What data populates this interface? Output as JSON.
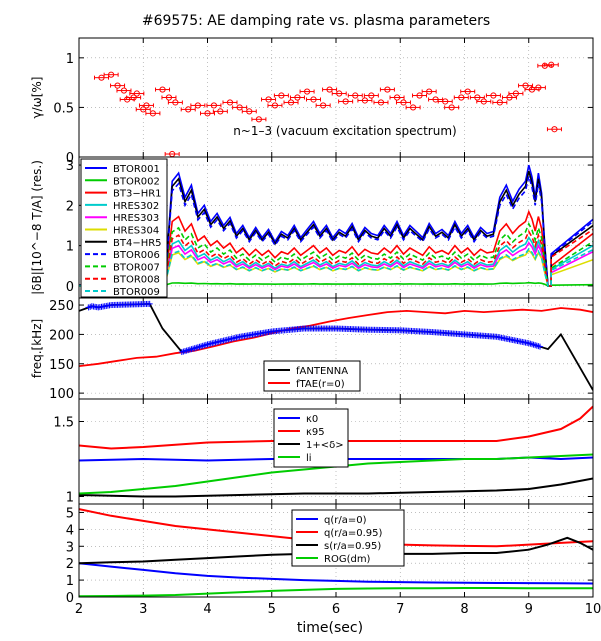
{
  "title": "#69575: AE damping rate vs. plasma parameters",
  "xlabel": "time(sec)",
  "x_ticks": [
    2,
    3,
    4,
    5,
    6,
    7,
    8,
    9,
    10
  ],
  "xlim": [
    2,
    10
  ],
  "chart_data": [
    {
      "type": "scatter",
      "ylabel": "γ/ω[%]",
      "ylim": [
        0,
        1.2
      ],
      "y_ticks": [
        0,
        0.5,
        1
      ],
      "annotation": "n~1–3 (vacuum excitation spectrum)",
      "color": "#ff0000",
      "series": [
        {
          "points": [
            {
              "x": 2.35,
              "y": 0.8
            },
            {
              "x": 2.5,
              "y": 0.83
            },
            {
              "x": 2.6,
              "y": 0.72
            },
            {
              "x": 2.7,
              "y": 0.67
            },
            {
              "x": 2.75,
              "y": 0.58
            },
            {
              "x": 2.85,
              "y": 0.6
            },
            {
              "x": 2.9,
              "y": 0.64
            },
            {
              "x": 3.0,
              "y": 0.48
            },
            {
              "x": 3.05,
              "y": 0.52
            },
            {
              "x": 3.15,
              "y": 0.44
            },
            {
              "x": 3.3,
              "y": 0.68
            },
            {
              "x": 3.4,
              "y": 0.6
            },
            {
              "x": 3.5,
              "y": 0.55
            },
            {
              "x": 3.45,
              "y": 0.03
            },
            {
              "x": 3.7,
              "y": 0.48
            },
            {
              "x": 3.85,
              "y": 0.52
            },
            {
              "x": 4.0,
              "y": 0.44
            },
            {
              "x": 4.1,
              "y": 0.52
            },
            {
              "x": 4.2,
              "y": 0.46
            },
            {
              "x": 4.35,
              "y": 0.55
            },
            {
              "x": 4.5,
              "y": 0.5
            },
            {
              "x": 4.65,
              "y": 0.46
            },
            {
              "x": 4.8,
              "y": 0.38
            },
            {
              "x": 4.95,
              "y": 0.58
            },
            {
              "x": 5.05,
              "y": 0.52
            },
            {
              "x": 5.15,
              "y": 0.62
            },
            {
              "x": 5.3,
              "y": 0.55
            },
            {
              "x": 5.4,
              "y": 0.6
            },
            {
              "x": 5.55,
              "y": 0.66
            },
            {
              "x": 5.65,
              "y": 0.58
            },
            {
              "x": 5.8,
              "y": 0.52
            },
            {
              "x": 5.9,
              "y": 0.68
            },
            {
              "x": 6.05,
              "y": 0.64
            },
            {
              "x": 6.15,
              "y": 0.56
            },
            {
              "x": 6.3,
              "y": 0.62
            },
            {
              "x": 6.45,
              "y": 0.57
            },
            {
              "x": 6.55,
              "y": 0.62
            },
            {
              "x": 6.7,
              "y": 0.55
            },
            {
              "x": 6.8,
              "y": 0.68
            },
            {
              "x": 6.95,
              "y": 0.6
            },
            {
              "x": 7.05,
              "y": 0.55
            },
            {
              "x": 7.2,
              "y": 0.5
            },
            {
              "x": 7.3,
              "y": 0.62
            },
            {
              "x": 7.45,
              "y": 0.66
            },
            {
              "x": 7.55,
              "y": 0.58
            },
            {
              "x": 7.7,
              "y": 0.56
            },
            {
              "x": 7.8,
              "y": 0.5
            },
            {
              "x": 7.95,
              "y": 0.6
            },
            {
              "x": 8.05,
              "y": 0.66
            },
            {
              "x": 8.2,
              "y": 0.6
            },
            {
              "x": 8.3,
              "y": 0.56
            },
            {
              "x": 8.45,
              "y": 0.62
            },
            {
              "x": 8.55,
              "y": 0.55
            },
            {
              "x": 8.7,
              "y": 0.6
            },
            {
              "x": 8.8,
              "y": 0.64
            },
            {
              "x": 8.95,
              "y": 0.72
            },
            {
              "x": 9.05,
              "y": 0.68
            },
            {
              "x": 9.15,
              "y": 0.7
            },
            {
              "x": 9.25,
              "y": 0.92
            },
            {
              "x": 9.35,
              "y": 0.93
            },
            {
              "x": 9.4,
              "y": 0.28
            }
          ]
        }
      ]
    },
    {
      "type": "line",
      "ylabel": "|δB|[10^−8 T/A] (res.)",
      "ylim": [
        -0.3,
        3.2
      ],
      "y_ticks": [
        0,
        1,
        2,
        3
      ],
      "legend": "top-left",
      "series": [
        {
          "name": "BTOR001",
          "color": "#0000ff",
          "dash": "",
          "scale": 1.0,
          "extra": [
            1.45,
            1.65
          ]
        },
        {
          "name": "BTOR002",
          "color": "#00cc00",
          "dash": "",
          "scale": 0.02,
          "extra": [
            0.03,
            0.03
          ]
        },
        {
          "name": "BT3−HR1",
          "color": "#ff0000",
          "dash": "",
          "scale": 0.6,
          "extra": [
            0.9,
            1.3
          ]
        },
        {
          "name": "HRES302",
          "color": "#00cccc",
          "dash": "",
          "scale": 0.4,
          "extra": [
            0.75,
            1.0
          ]
        },
        {
          "name": "HRES303",
          "color": "#ff00ff",
          "dash": "",
          "scale": 0.35,
          "extra": [
            0.6,
            0.85
          ]
        },
        {
          "name": "HRES304",
          "color": "#dddd00",
          "dash": "",
          "scale": 0.28,
          "extra": [
            0.5,
            0.65
          ]
        },
        {
          "name": "BT4−HR5",
          "color": "#000000",
          "dash": "",
          "scale": 0.95,
          "extra": [
            1.35,
            1.5
          ]
        },
        {
          "name": "BTOR006",
          "color": "#0000ff",
          "dash": "5,3",
          "scale": 0.9,
          "extra": [
            1.4,
            1.6
          ]
        },
        {
          "name": "BTOR007",
          "color": "#00cc00",
          "dash": "5,3",
          "scale": 0.5,
          "extra": [
            0.8,
            1.1
          ]
        },
        {
          "name": "BTOR008",
          "color": "#ff0000",
          "dash": "5,3",
          "scale": 0.45,
          "extra": [
            1.3,
            1.4
          ]
        },
        {
          "name": "BTOR009",
          "color": "#00cccc",
          "dash": "5,3",
          "scale": 0.3,
          "extra": [
            0.7,
            0.9
          ]
        }
      ],
      "envelope": {
        "x": [
          2.0,
          2.1,
          2.2,
          2.3,
          2.4,
          2.5,
          2.6,
          2.7,
          2.8,
          2.9,
          3.0,
          3.1,
          3.2,
          3.3,
          3.35,
          3.45,
          3.55,
          3.65,
          3.75,
          3.85,
          3.95,
          4.05,
          4.15,
          4.25,
          4.35,
          4.45,
          4.55,
          4.65,
          4.75,
          4.85,
          4.95,
          5.05,
          5.15,
          5.25,
          5.35,
          5.45,
          5.55,
          5.65,
          5.75,
          5.85,
          5.95,
          6.05,
          6.15,
          6.25,
          6.35,
          6.45,
          6.55,
          6.65,
          6.75,
          6.85,
          6.95,
          7.05,
          7.15,
          7.25,
          7.35,
          7.45,
          7.55,
          7.65,
          7.75,
          7.85,
          7.95,
          8.05,
          8.15,
          8.25,
          8.35,
          8.45,
          8.55,
          8.65,
          8.75,
          8.85,
          8.95,
          9.0,
          9.05,
          9.1,
          9.15,
          9.2,
          9.25,
          9.3,
          9.35
        ],
        "y": [
          0.05,
          0.05,
          0.05,
          0.05,
          0.05,
          0.05,
          0.05,
          0.05,
          0.05,
          0.05,
          0.05,
          0.05,
          0.05,
          0.05,
          0.3,
          2.6,
          2.8,
          2.2,
          2.5,
          1.8,
          2.0,
          1.6,
          1.8,
          1.5,
          1.7,
          1.3,
          1.5,
          1.2,
          1.45,
          1.2,
          1.4,
          1.1,
          1.35,
          1.25,
          1.5,
          1.2,
          1.4,
          1.6,
          1.3,
          1.5,
          1.2,
          1.4,
          1.3,
          1.55,
          1.2,
          1.45,
          1.3,
          1.25,
          1.5,
          1.3,
          1.6,
          1.25,
          1.5,
          1.35,
          1.2,
          1.55,
          1.3,
          1.4,
          1.25,
          1.6,
          1.3,
          1.5,
          1.2,
          1.45,
          1.3,
          1.35,
          2.2,
          2.5,
          2.1,
          2.4,
          2.6,
          3.0,
          2.7,
          2.2,
          2.8,
          2.3,
          1.0,
          0.3,
          0.05
        ]
      }
    },
    {
      "type": "line",
      "ylabel": "freq.[kHz]",
      "ylim": [
        90,
        262
      ],
      "y_ticks": [
        100,
        150,
        200,
        250
      ],
      "legend": "lower-center",
      "series": [
        {
          "name": "fANTENNA",
          "color": "#000000",
          "x": [
            2.0,
            2.1,
            2.2,
            2.3,
            2.5,
            2.8,
            3.1,
            3.3,
            3.6,
            4.0,
            4.5,
            5.0,
            5.5,
            6.0,
            6.5,
            7.0,
            7.5,
            8.0,
            8.5,
            9.0,
            9.3,
            9.5,
            10.0
          ],
          "y": [
            240,
            244,
            248,
            246,
            250,
            251,
            252,
            210,
            170,
            183,
            196,
            205,
            210,
            210,
            208,
            207,
            204,
            200,
            196,
            185,
            175,
            200,
            105
          ]
        },
        {
          "name": "fTAE(r=0)",
          "color": "#ff0000",
          "x": [
            2.0,
            2.3,
            2.6,
            2.9,
            3.2,
            3.5,
            3.8,
            4.1,
            4.4,
            4.7,
            5.0,
            5.3,
            5.6,
            5.9,
            6.2,
            6.5,
            6.8,
            7.1,
            7.4,
            7.7,
            8.0,
            8.3,
            8.6,
            8.9,
            9.2,
            9.5,
            9.8,
            10.0
          ],
          "y": [
            146,
            150,
            155,
            160,
            162,
            168,
            172,
            180,
            188,
            194,
            202,
            210,
            215,
            222,
            228,
            233,
            238,
            240,
            238,
            236,
            240,
            238,
            240,
            242,
            240,
            245,
            242,
            238
          ]
        }
      ],
      "markers": {
        "name": "fANTENNA",
        "color": "#0000ff",
        "segments": [
          [
            2.15,
            3.1
          ],
          [
            3.6,
            9.2
          ]
        ]
      }
    },
    {
      "type": "line",
      "ylabel": "",
      "ylim": [
        0.95,
        1.65
      ],
      "y_ticks": [
        1,
        1.5
      ],
      "legend": "top-center",
      "series": [
        {
          "name": "κ0",
          "color": "#0000ff",
          "x": [
            2.0,
            3.0,
            4.0,
            5.0,
            6.0,
            7.0,
            8.0,
            8.5,
            9.0,
            9.5,
            10.0
          ],
          "y": [
            1.24,
            1.25,
            1.24,
            1.25,
            1.25,
            1.25,
            1.25,
            1.25,
            1.26,
            1.25,
            1.26
          ]
        },
        {
          "name": "κ95",
          "color": "#ff0000",
          "x": [
            2.0,
            2.5,
            3.0,
            4.0,
            5.0,
            6.0,
            7.0,
            8.0,
            8.5,
            9.0,
            9.5,
            9.8,
            10.0
          ],
          "y": [
            1.34,
            1.32,
            1.33,
            1.36,
            1.37,
            1.37,
            1.37,
            1.37,
            1.37,
            1.4,
            1.45,
            1.52,
            1.6
          ]
        },
        {
          "name": "1+<δ>",
          "color": "#000000",
          "x": [
            2.0,
            3.0,
            3.5,
            4.5,
            5.5,
            6.5,
            7.5,
            8.5,
            9.0,
            9.5,
            10.0
          ],
          "y": [
            1.01,
            1.0,
            1.0,
            1.01,
            1.02,
            1.02,
            1.03,
            1.04,
            1.05,
            1.08,
            1.12
          ]
        },
        {
          "name": "li",
          "color": "#00cc00",
          "x": [
            2.0,
            2.5,
            3.0,
            3.5,
            4.0,
            4.5,
            5.0,
            5.5,
            6.0,
            6.5,
            7.0,
            7.5,
            8.0,
            8.5,
            9.0,
            9.5,
            10.0
          ],
          "y": [
            1.02,
            1.03,
            1.05,
            1.07,
            1.1,
            1.13,
            1.16,
            1.18,
            1.2,
            1.22,
            1.23,
            1.24,
            1.25,
            1.25,
            1.26,
            1.27,
            1.28
          ]
        }
      ]
    },
    {
      "type": "line",
      "ylabel": "",
      "ylim": [
        0,
        5.5
      ],
      "y_ticks": [
        0,
        1,
        2,
        3,
        4,
        5
      ],
      "legend": "top-right",
      "series": [
        {
          "name": "q(r/a=0)",
          "color": "#0000ff",
          "x": [
            2.0,
            2.5,
            3.0,
            3.5,
            4.0,
            4.5,
            5.0,
            5.5,
            6.0,
            6.5,
            7.0,
            7.5,
            8.0,
            8.5,
            9.0,
            9.5,
            10.0
          ],
          "y": [
            2.0,
            1.8,
            1.6,
            1.4,
            1.25,
            1.15,
            1.07,
            1.0,
            0.95,
            0.9,
            0.88,
            0.86,
            0.84,
            0.83,
            0.82,
            0.81,
            0.8
          ]
        },
        {
          "name": "q(r/a=0.95)",
          "color": "#ff0000",
          "x": [
            2.0,
            2.5,
            3.0,
            3.5,
            4.0,
            4.5,
            5.0,
            5.5,
            6.0,
            6.5,
            7.0,
            7.5,
            8.0,
            8.5,
            9.0,
            9.5,
            10.0
          ],
          "y": [
            5.2,
            4.8,
            4.5,
            4.2,
            4.0,
            3.8,
            3.6,
            3.4,
            3.25,
            3.15,
            3.1,
            3.05,
            3.02,
            3.0,
            3.1,
            3.2,
            3.3
          ]
        },
        {
          "name": "s(r/a=0.95)",
          "color": "#000000",
          "x": [
            2.0,
            2.5,
            3.0,
            3.5,
            4.0,
            4.5,
            5.0,
            5.5,
            6.0,
            6.5,
            7.0,
            7.5,
            8.0,
            8.5,
            9.0,
            9.3,
            9.6,
            9.8,
            10.0
          ],
          "y": [
            2.0,
            2.05,
            2.1,
            2.2,
            2.3,
            2.4,
            2.5,
            2.55,
            2.6,
            2.6,
            2.55,
            2.55,
            2.6,
            2.6,
            2.8,
            3.1,
            3.5,
            3.2,
            2.8
          ]
        },
        {
          "name": "ROG(dm)",
          "color": "#00cc00",
          "x": [
            2.0,
            2.5,
            3.0,
            3.5,
            4.0,
            4.5,
            5.0,
            5.5,
            6.0,
            6.5,
            7.0,
            7.5,
            8.0,
            8.5,
            9.0,
            9.5,
            10.0
          ],
          "y": [
            0.05,
            0.06,
            0.08,
            0.12,
            0.2,
            0.28,
            0.36,
            0.42,
            0.48,
            0.5,
            0.52,
            0.52,
            0.53,
            0.53,
            0.52,
            0.52,
            0.52
          ]
        }
      ]
    }
  ]
}
